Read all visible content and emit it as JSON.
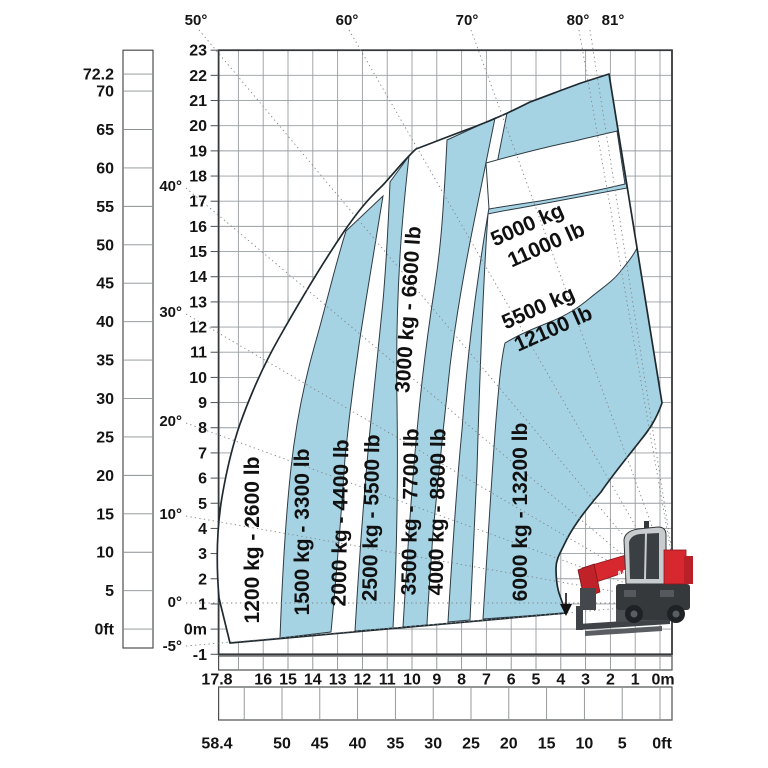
{
  "chart_data": {
    "type": "area",
    "description_internal": "telehandler-load-capacity-envelope",
    "x_axis": {
      "units": [
        "m",
        "ft"
      ],
      "range_m": [
        0,
        17.8
      ],
      "range_ft": [
        0,
        58.4
      ],
      "direction": "right-to-left"
    },
    "y_axis": {
      "units": [
        "m",
        "ft"
      ],
      "range_m": [
        -1,
        23
      ],
      "range_ft": [
        0,
        72.2
      ]
    },
    "boom_angles_deg": [
      -5,
      0,
      10,
      20,
      30,
      40,
      50,
      60,
      70,
      80,
      81
    ],
    "zones": [
      {
        "kg": 1200,
        "lb": 2600,
        "fill": "white",
        "label": "1200 kg - 2600 lb"
      },
      {
        "kg": 1500,
        "lb": 3300,
        "fill": "blue",
        "label": "1500 kg - 3300 lb"
      },
      {
        "kg": 2000,
        "lb": 4400,
        "fill": "white",
        "label": "2000 kg - 4400 lb"
      },
      {
        "kg": 2500,
        "lb": 5500,
        "fill": "blue",
        "label": "2500 kg - 5500 lb"
      },
      {
        "kg": 3000,
        "lb": 6600,
        "fill": "white",
        "label": "3000 kg - 6600 lb"
      },
      {
        "kg": 3500,
        "lb": 7700,
        "fill": "blue",
        "label": "3500 kg - 7700 lb"
      },
      {
        "kg": 4000,
        "lb": 8800,
        "fill": "white",
        "label": "4000 kg - 8800 lb"
      },
      {
        "kg": 5000,
        "lb": 11000,
        "fill": "blue",
        "label_line1": "5000 kg",
        "label_line2": "11000 lb"
      },
      {
        "kg": 5500,
        "lb": 12100,
        "fill": "white",
        "label_line1": "5500 kg",
        "label_line2": "12100 lb"
      },
      {
        "kg": 6000,
        "lb": 13200,
        "fill": "blue",
        "label": "6000 kg - 13200 lb"
      }
    ]
  },
  "axes": {
    "height_ft": [
      "72.2",
      "70",
      "65",
      "60",
      "55",
      "50",
      "45",
      "40",
      "35",
      "30",
      "25",
      "20",
      "15",
      "10",
      "5",
      "0ft"
    ],
    "height_m": [
      "23",
      "22",
      "21",
      "20",
      "19",
      "18",
      "17",
      "16",
      "15",
      "14",
      "13",
      "12",
      "11",
      "10",
      "9",
      "8",
      "7",
      "6",
      "5",
      "4",
      "3",
      "2",
      "1",
      "0m",
      "-1"
    ],
    "reach_m": [
      "17.8",
      "16",
      "15",
      "14",
      "13",
      "12",
      "11",
      "10",
      "9",
      "8",
      "7",
      "6",
      "5",
      "4",
      "3",
      "2",
      "1",
      "0m"
    ],
    "reach_ft": [
      "58.4",
      "50",
      "45",
      "40",
      "35",
      "30",
      "25",
      "20",
      "15",
      "10",
      "5",
      "0ft"
    ],
    "boom_angles_top": [
      "50°",
      "60°",
      "70°",
      "80°",
      "81°"
    ],
    "boom_angles_left": [
      "40°",
      "30°",
      "20°",
      "10°",
      "0°",
      "-5°"
    ]
  },
  "machine": {
    "logo_text": "M"
  },
  "colors": {
    "zone_blue": "#a6d3e3",
    "machine_red": "#d7282f"
  }
}
